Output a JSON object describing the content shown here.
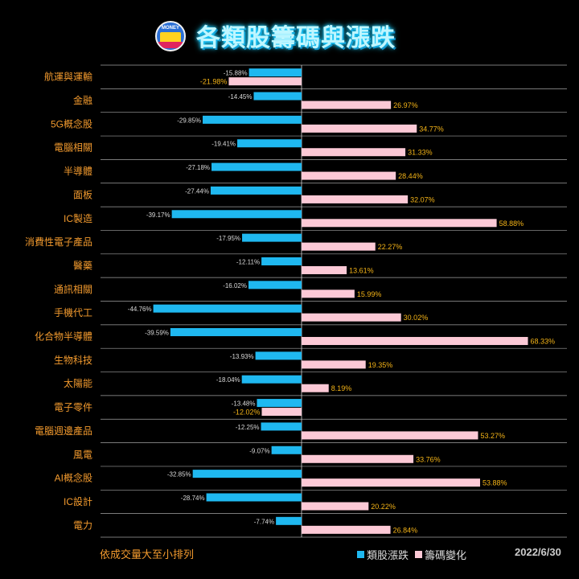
{
  "title": "各類股籌碼與漲跌",
  "logo_text": "MONEY",
  "sort_note": "依成交量大至小排列",
  "date": "2022/6/30",
  "colors": {
    "series1": "#1fb8f0",
    "series2": "#fcc9d6",
    "grid": "#d9d9d9",
    "category": "#f29a2e",
    "label_neg": "#d9d9d9",
    "label_pos": "#f5b417"
  },
  "chart_data": {
    "type": "bar",
    "orientation": "horizontal",
    "categories": [
      "航運與運輸",
      "金融",
      "5G概念股",
      "電腦相關",
      "半導體",
      "面板",
      "IC製造",
      "消費性電子產品",
      "醫藥",
      "通訊相關",
      "手機代工",
      "化合物半導體",
      "生物科技",
      "太陽能",
      "電子零件",
      "電腦週邊產品",
      "風電",
      "AI概念股",
      "IC設計",
      "電力"
    ],
    "series": [
      {
        "name": "類股漲跌",
        "values": [
          -15.88,
          -14.45,
          -29.85,
          -19.41,
          -27.18,
          -27.44,
          -39.17,
          -17.95,
          -12.11,
          -16.02,
          -44.76,
          -39.59,
          -13.93,
          -18.04,
          -13.48,
          -12.25,
          -9.07,
          -32.85,
          -28.74,
          -7.74
        ],
        "labels": [
          "-15.88%",
          "-14.45%",
          "-29.85%",
          "-19.41%",
          "-27.18%",
          "-27.44%",
          "-39.17%",
          "-17.95%",
          "-12.11%",
          "-16.02%",
          "-44.76%",
          "-39.59%",
          "-13.93%",
          "-18.04%",
          "-13.48%",
          "-12.25%",
          "-9.07%",
          "-32.85%",
          "-28.74%",
          "-7.74%"
        ]
      },
      {
        "name": "籌碼變化",
        "values": [
          -21.98,
          26.97,
          34.77,
          31.33,
          28.44,
          32.07,
          58.88,
          22.27,
          13.61,
          15.99,
          30.02,
          68.33,
          19.35,
          8.19,
          -12.02,
          53.27,
          33.76,
          53.88,
          20.22,
          26.84
        ],
        "labels": [
          "-21.98%",
          "26.97%",
          "34.77%",
          "31.33%",
          "28.44%",
          "32.07%",
          "58.88%",
          "22.27%",
          "13.61%",
          "15.99%",
          "30.02%",
          "68.33%",
          "19.35%",
          "8.19%",
          "-12.02%",
          "53.27%",
          "33.76%",
          "53.88%",
          "20.22%",
          "26.84%"
        ]
      }
    ],
    "xlim": [
      -50,
      80
    ],
    "grid": true,
    "legend_position": "bottom"
  }
}
